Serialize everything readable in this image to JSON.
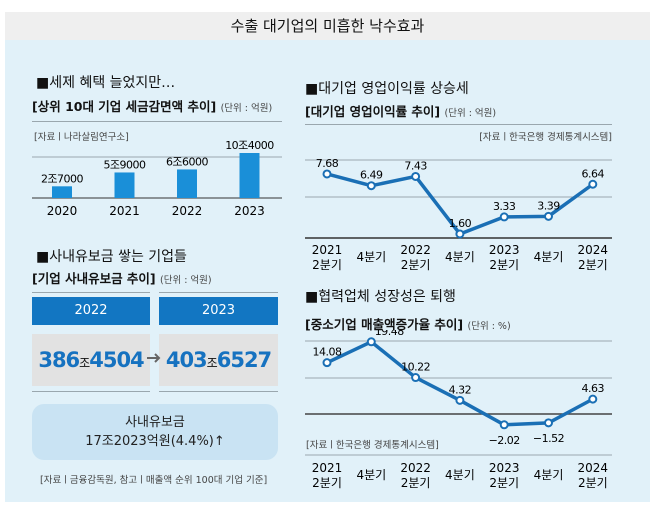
{
  "title": "수출 대기업의 미흡한 낙수효과",
  "colors": {
    "accent": "#1276c2",
    "bar": "#1a8fd8",
    "line": "#1a6fb5",
    "panel": "#e1f1f9"
  },
  "chart_data": [
    {
      "type": "bar",
      "heading": "■세제 혜택 늘었지만…",
      "title": "[상위 10대 기업 세금감면액 추이]",
      "unit": "(단위 : 억원)",
      "source": "[자료ㅣ나라살림연구소]",
      "categories": [
        "2020",
        "2021",
        "2022",
        "2023"
      ],
      "values": [
        27000,
        59000,
        66000,
        104000
      ],
      "labels": [
        "2조7000",
        "5조9000",
        "6조6000",
        "10조4000"
      ]
    },
    {
      "type": "line",
      "heading": "■대기업 영업이익률 상승세",
      "title": "[대기업 영업이익률 추이]",
      "unit": "(단위 : 억원)",
      "source": "[자료ㅣ한국은행 경제통계시스템]",
      "categories": [
        [
          "2021",
          "2분기"
        ],
        [
          "4분기"
        ],
        [
          "2022",
          "2분기"
        ],
        [
          "4분기"
        ],
        [
          "2023",
          "2분기"
        ],
        [
          "4분기"
        ],
        [
          "2024",
          "2분기"
        ]
      ],
      "values": [
        7.68,
        6.49,
        7.43,
        1.6,
        3.33,
        3.39,
        6.64
      ],
      "labels": [
        "7.68",
        "6.49",
        "7.43",
        "1.60",
        "3.33",
        "3.39",
        "6.64"
      ],
      "ylim": [
        1.2,
        9.1
      ],
      "grid": true
    },
    {
      "type": "line",
      "heading": "■협력업체 성장성은 퇴행",
      "title": "[중소기업 매출액증가율 추이]",
      "unit": "(단위 : %)",
      "source": "[자료ㅣ한국은행 경제통계시스템]",
      "categories": [
        [
          "2021",
          "2분기"
        ],
        [
          "4분기"
        ],
        [
          "2022",
          "2분기"
        ],
        [
          "4분기"
        ],
        [
          "2023",
          "2분기"
        ],
        [
          "4분기"
        ],
        [
          "2024",
          "2분기"
        ]
      ],
      "values": [
        14.08,
        19.48,
        10.22,
        4.32,
        -2.02,
        -1.52,
        4.63
      ],
      "labels": [
        "14.08",
        "19.48",
        "10.22",
        "4.32",
        "−2.02",
        "−1.52",
        "4.63"
      ],
      "grid": true
    }
  ],
  "reserves": {
    "heading": "■사내유보금 쌓는 기업들",
    "title": "[기업 사내유보금 추이]",
    "unit": "(단위 : 억원)",
    "years": [
      {
        "year": "2022",
        "a": "386",
        "jo": "조",
        "b": "4504"
      },
      {
        "year": "2023",
        "a": "403",
        "jo": "조",
        "b": "6527"
      }
    ],
    "summary_line1": "사내유보금",
    "summary_line2": "17조2023억원(4.4%)↑",
    "source": "[자료ㅣ금융감독원, 참고ㅣ매출액 순위 100대 기업 기준]"
  }
}
